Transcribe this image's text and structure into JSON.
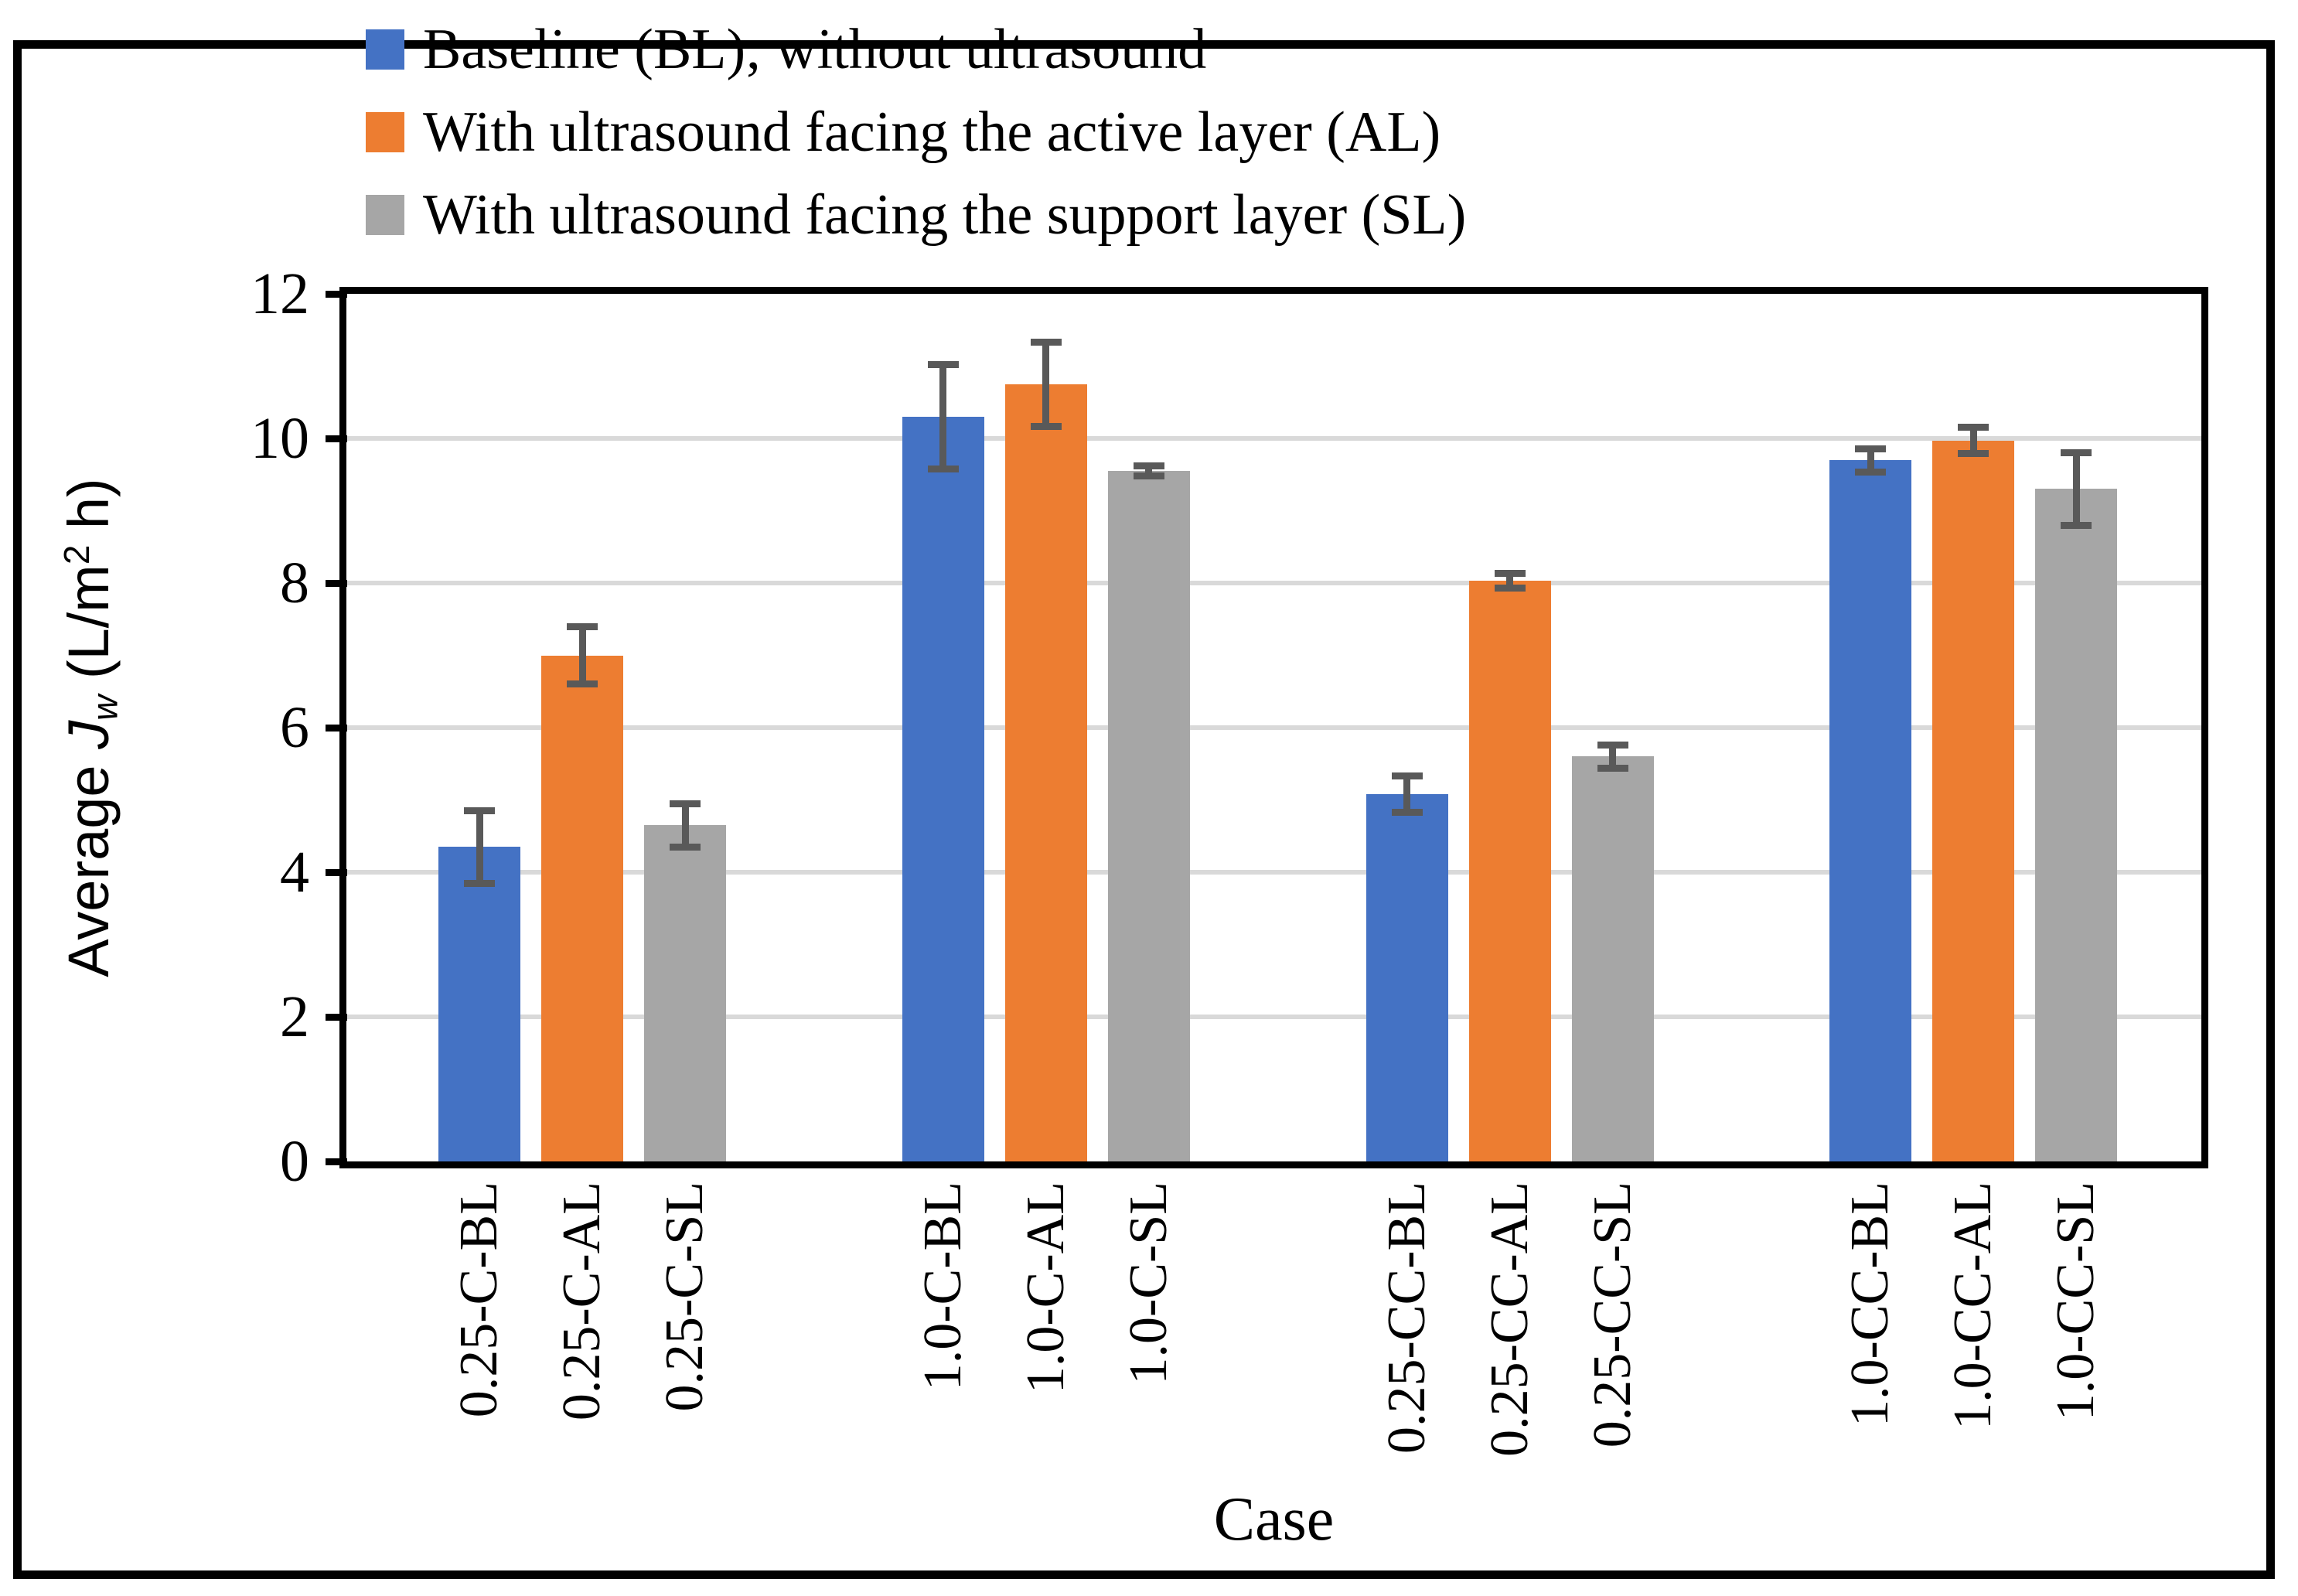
{
  "figure": {
    "background": "#FFFFFF",
    "border_color": "#000000"
  },
  "legend": {
    "position": "top-left",
    "items": [
      {
        "label": "Baseline (BL); without ultrasound",
        "color": "#4472C4"
      },
      {
        "label": "With ultrasound facing the active layer (AL)",
        "color": "#ED7D31"
      },
      {
        "label": "With ultrasound facing the support layer (SL)",
        "color": "#A6A6A6"
      }
    ]
  },
  "chart_data": {
    "type": "bar",
    "title": "",
    "xlabel": "Case",
    "ylabel": "Average Jw (L/m2 h)",
    "ylabel_parts": {
      "prefix": "Average ",
      "symbol": "J",
      "subscript": "w",
      "mid": " (L/m",
      "superscript": "2",
      "suffix": " h)"
    },
    "ylim": [
      0,
      12
    ],
    "yticks": [
      0,
      2,
      4,
      6,
      8,
      10,
      12
    ],
    "grid": true,
    "gridline_color": "#D9D9D9",
    "error_bar_color": "#595959",
    "series_colors": {
      "BL": "#4472C4",
      "AL": "#ED7D31",
      "SL": "#A6A6A6"
    },
    "groups": [
      "0.25-C",
      "1.0-C",
      "0.25-CC",
      "1.0-CC"
    ],
    "bars": [
      {
        "label": "0.25-C-BL",
        "series": "BL",
        "value": 4.35,
        "error": 0.5
      },
      {
        "label": "0.25-C-AL",
        "series": "AL",
        "value": 7.0,
        "error": 0.4
      },
      {
        "label": "0.25-C-SL",
        "series": "SL",
        "value": 4.65,
        "error": 0.3
      },
      {
        "label": "1.0-C-BL",
        "series": "BL",
        "value": 10.3,
        "error": 0.72
      },
      {
        "label": "1.0-C-AL",
        "series": "AL",
        "value": 10.75,
        "error": 0.58
      },
      {
        "label": "1.0-C-SL",
        "series": "SL",
        "value": 9.55,
        "error": 0.07
      },
      {
        "label": "0.25-CC-BL",
        "series": "BL",
        "value": 5.08,
        "error": 0.25
      },
      {
        "label": "0.25-CC-AL",
        "series": "AL",
        "value": 8.03,
        "error": 0.1
      },
      {
        "label": "0.25-CC-SL",
        "series": "SL",
        "value": 5.6,
        "error": 0.16
      },
      {
        "label": "1.0-CC-BL",
        "series": "BL",
        "value": 9.7,
        "error": 0.16
      },
      {
        "label": "1.0-CC-AL",
        "series": "AL",
        "value": 9.97,
        "error": 0.18
      },
      {
        "label": "1.0-CC-SL",
        "series": "SL",
        "value": 9.3,
        "error": 0.5
      }
    ]
  }
}
